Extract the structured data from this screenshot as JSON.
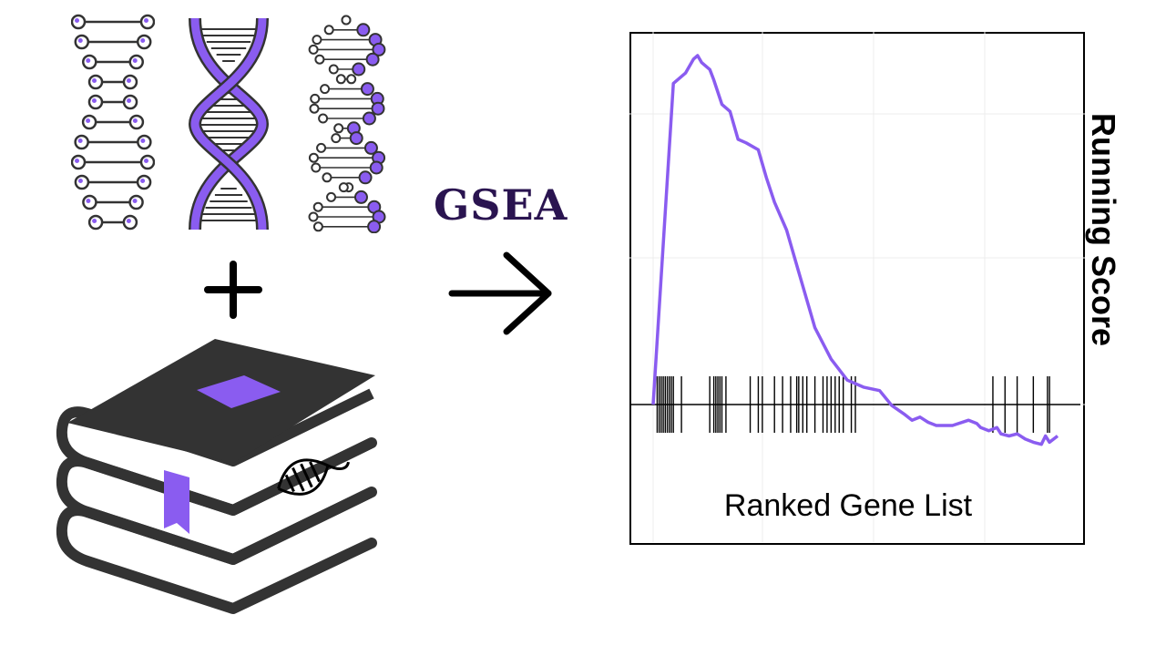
{
  "title": "GSEA",
  "colors": {
    "accent": "#8a5cf0",
    "dark": "#333333",
    "title": "#2a1450",
    "line": "#8a5cf0"
  },
  "icons": {
    "dna_ladder": "dna-ladder-icon",
    "dna_helix": "dna-helix-icon",
    "dna_beads": "dna-beaded-icon",
    "plus": "plus-icon",
    "books": "books-stack-icon",
    "arrow": "arrow-right-icon"
  },
  "chart_data": {
    "type": "line",
    "title": "",
    "xlabel": "Ranked Gene List",
    "ylabel": "Running Score",
    "grid": true,
    "series": [
      {
        "values_x": [
          0,
          0.05,
          0.08,
          0.1,
          0.11,
          0.12,
          0.14,
          0.15,
          0.17,
          0.19,
          0.21,
          0.23,
          0.26,
          0.28,
          0.3,
          0.33,
          0.36,
          0.4,
          0.44,
          0.48,
          0.52,
          0.56,
          0.59,
          0.62,
          0.64,
          0.66,
          0.68,
          0.7,
          0.74,
          0.78,
          0.8,
          0.81,
          0.83,
          0.85,
          0.86,
          0.88,
          0.9,
          0.92,
          0.94,
          0.96,
          0.97,
          0.98,
          1.0
        ],
        "values_y": [
          0.0,
          0.92,
          0.95,
          0.99,
          1.0,
          0.98,
          0.96,
          0.93,
          0.86,
          0.84,
          0.76,
          0.75,
          0.73,
          0.65,
          0.58,
          0.5,
          0.38,
          0.22,
          0.13,
          0.07,
          0.05,
          0.04,
          -0.01,
          -0.09,
          -0.15,
          -0.12,
          -0.17,
          -0.2,
          -0.2,
          -0.15,
          -0.18,
          -0.22,
          -0.25,
          -0.22,
          -0.28,
          -0.3,
          -0.28,
          -0.33,
          -0.36,
          -0.38,
          -0.3,
          -0.36,
          -0.3
        ]
      }
    ],
    "hits": [
      0.01,
      0.015,
      0.02,
      0.025,
      0.03,
      0.035,
      0.04,
      0.045,
      0.05,
      0.07,
      0.14,
      0.15,
      0.155,
      0.16,
      0.165,
      0.17,
      0.18,
      0.24,
      0.26,
      0.27,
      0.3,
      0.32,
      0.34,
      0.355,
      0.36,
      0.37,
      0.38,
      0.4,
      0.42,
      0.43,
      0.44,
      0.45,
      0.46,
      0.47,
      0.49,
      0.5,
      0.84,
      0.87,
      0.9,
      0.94,
      0.975,
      0.98
    ]
  }
}
